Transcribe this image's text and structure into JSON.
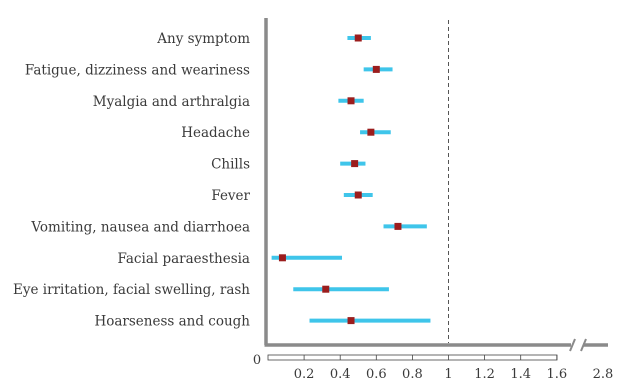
{
  "chart_data": {
    "type": "forest",
    "categories": [
      "Any symptom",
      "Fatigue, dizziness and weariness",
      "Myalgia and arthralgia",
      "Headache",
      "Chills",
      "Fever",
      "Vomiting, nausea and diarrhoea",
      "Facial paraesthesia",
      "Eye irritation, facial swelling, rash",
      "Hoarseness and cough"
    ],
    "estimates": [
      0.5,
      0.6,
      0.46,
      0.57,
      0.48,
      0.5,
      0.72,
      0.08,
      0.32,
      0.46
    ],
    "ci_lower": [
      0.44,
      0.53,
      0.39,
      0.51,
      0.4,
      0.42,
      0.64,
      0.02,
      0.14,
      0.23
    ],
    "ci_upper": [
      0.57,
      0.69,
      0.53,
      0.68,
      0.54,
      0.58,
      0.88,
      0.41,
      0.67,
      0.9
    ],
    "reference_line": 1,
    "x_ticks": [
      "0",
      "0.2",
      "0.4",
      "0.6",
      "0.8",
      "1",
      "1.2",
      "1.4",
      "1.6",
      "2.8"
    ],
    "xlim": [
      0,
      1.8
    ],
    "axis_break": true,
    "colors": {
      "ci": "#3fc5ea",
      "point": "#9b1d1d",
      "axis": "#8a8a8a",
      "text": "#3a3a3a"
    }
  }
}
